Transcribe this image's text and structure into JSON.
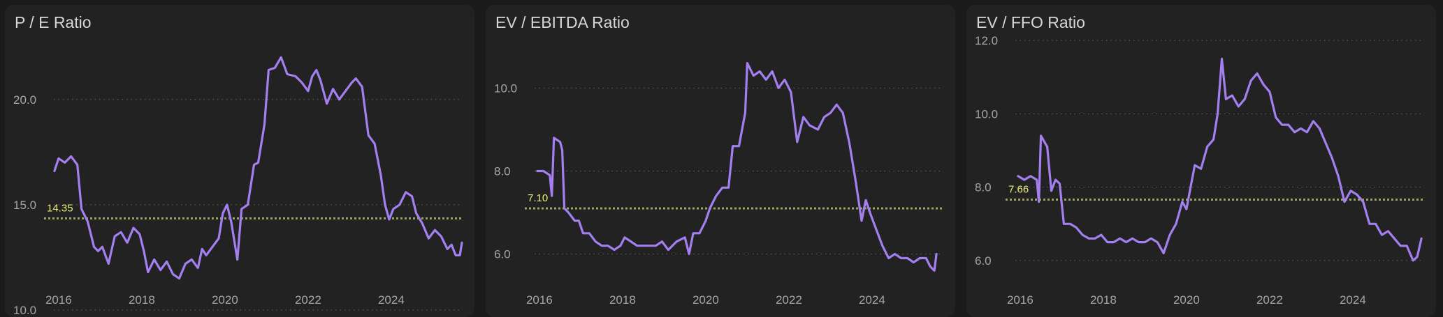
{
  "colors": {
    "line": "#a47ff0",
    "average": "#9ea363",
    "average_label": "#e9ef7a",
    "grid": "#6a6a6a",
    "panel": "#222222",
    "page": "#1a1a1a"
  },
  "chart_data": [
    {
      "type": "line",
      "title": "P / E Ratio",
      "x_ticks": [
        "2016",
        "2018",
        "2020",
        "2022",
        "2024"
      ],
      "y_ticks": [
        "10.0",
        "15.0",
        "20.0"
      ],
      "ylim": [
        10,
        23.5
      ],
      "xlim": [
        2015.75,
        2025.8
      ],
      "grid": "horizontal dotted",
      "average": {
        "value": 14.35,
        "label": "14.35"
      },
      "series": [
        {
          "points": [
            [
              2015.9,
              16.6
            ],
            [
              2016.0,
              17.2
            ],
            [
              2016.15,
              17.0
            ],
            [
              2016.3,
              17.3
            ],
            [
              2016.45,
              16.9
            ],
            [
              2016.55,
              14.8
            ],
            [
              2016.7,
              14.2
            ],
            [
              2016.85,
              13.0
            ],
            [
              2016.95,
              12.8
            ],
            [
              2017.05,
              13.0
            ],
            [
              2017.2,
              12.2
            ],
            [
              2017.35,
              13.5
            ],
            [
              2017.5,
              13.7
            ],
            [
              2017.65,
              13.2
            ],
            [
              2017.8,
              13.9
            ],
            [
              2017.95,
              13.6
            ],
            [
              2018.05,
              12.8
            ],
            [
              2018.15,
              11.8
            ],
            [
              2018.3,
              12.4
            ],
            [
              2018.45,
              11.9
            ],
            [
              2018.6,
              12.3
            ],
            [
              2018.75,
              11.7
            ],
            [
              2018.9,
              11.5
            ],
            [
              2019.05,
              12.2
            ],
            [
              2019.2,
              12.4
            ],
            [
              2019.35,
              12.0
            ],
            [
              2019.45,
              12.9
            ],
            [
              2019.55,
              12.6
            ],
            [
              2019.7,
              13.0
            ],
            [
              2019.85,
              13.4
            ],
            [
              2019.95,
              14.6
            ],
            [
              2020.05,
              15.0
            ],
            [
              2020.15,
              14.2
            ],
            [
              2020.3,
              12.4
            ],
            [
              2020.4,
              14.8
            ],
            [
              2020.55,
              15.0
            ],
            [
              2020.7,
              16.9
            ],
            [
              2020.8,
              17.0
            ],
            [
              2020.95,
              18.8
            ],
            [
              2021.05,
              21.4
            ],
            [
              2021.2,
              21.5
            ],
            [
              2021.35,
              22.0
            ],
            [
              2021.5,
              21.2
            ],
            [
              2021.7,
              21.1
            ],
            [
              2021.85,
              20.8
            ],
            [
              2022.0,
              20.4
            ],
            [
              2022.1,
              21.1
            ],
            [
              2022.2,
              21.4
            ],
            [
              2022.3,
              20.9
            ],
            [
              2022.45,
              19.8
            ],
            [
              2022.6,
              20.5
            ],
            [
              2022.75,
              20.0
            ],
            [
              2022.9,
              20.4
            ],
            [
              2023.05,
              20.8
            ],
            [
              2023.15,
              21.0
            ],
            [
              2023.3,
              20.6
            ],
            [
              2023.45,
              18.3
            ],
            [
              2023.6,
              17.9
            ],
            [
              2023.75,
              16.4
            ],
            [
              2023.85,
              15.0
            ],
            [
              2023.95,
              14.3
            ],
            [
              2024.05,
              14.8
            ],
            [
              2024.2,
              15.0
            ],
            [
              2024.35,
              15.6
            ],
            [
              2024.5,
              15.4
            ],
            [
              2024.6,
              14.6
            ],
            [
              2024.75,
              14.1
            ],
            [
              2024.9,
              13.4
            ],
            [
              2025.05,
              13.8
            ],
            [
              2025.2,
              13.5
            ],
            [
              2025.35,
              12.9
            ],
            [
              2025.45,
              13.1
            ],
            [
              2025.55,
              12.6
            ],
            [
              2025.65,
              12.6
            ],
            [
              2025.7,
              13.2
            ]
          ]
        }
      ]
    },
    {
      "type": "line",
      "title": "EV / EBITDA Ratio",
      "x_ticks": [
        "2016",
        "2018",
        "2020",
        "2022",
        "2024"
      ],
      "y_ticks": [
        "6.0",
        "8.0",
        "10.0"
      ],
      "ylim": [
        4.65,
        11.5
      ],
      "xlim": [
        2015.75,
        2025.8
      ],
      "grid": "horizontal dotted",
      "average": {
        "value": 7.1,
        "label": "7.10"
      },
      "series": [
        {
          "points": [
            [
              2015.95,
              8.0
            ],
            [
              2016.1,
              8.0
            ],
            [
              2016.25,
              7.9
            ],
            [
              2016.3,
              7.4
            ],
            [
              2016.35,
              8.8
            ],
            [
              2016.5,
              8.7
            ],
            [
              2016.55,
              8.5
            ],
            [
              2016.6,
              7.1
            ],
            [
              2016.7,
              7.0
            ],
            [
              2016.85,
              6.8
            ],
            [
              2016.95,
              6.8
            ],
            [
              2017.05,
              6.5
            ],
            [
              2017.2,
              6.5
            ],
            [
              2017.35,
              6.3
            ],
            [
              2017.5,
              6.2
            ],
            [
              2017.65,
              6.2
            ],
            [
              2017.8,
              6.1
            ],
            [
              2017.95,
              6.2
            ],
            [
              2018.05,
              6.4
            ],
            [
              2018.2,
              6.3
            ],
            [
              2018.35,
              6.2
            ],
            [
              2018.5,
              6.2
            ],
            [
              2018.65,
              6.2
            ],
            [
              2018.8,
              6.2
            ],
            [
              2018.95,
              6.3
            ],
            [
              2019.1,
              6.1
            ],
            [
              2019.3,
              6.3
            ],
            [
              2019.5,
              6.4
            ],
            [
              2019.6,
              6.0
            ],
            [
              2019.7,
              6.5
            ],
            [
              2019.85,
              6.5
            ],
            [
              2020.0,
              6.8
            ],
            [
              2020.1,
              7.1
            ],
            [
              2020.25,
              7.4
            ],
            [
              2020.4,
              7.6
            ],
            [
              2020.55,
              7.6
            ],
            [
              2020.65,
              8.6
            ],
            [
              2020.8,
              8.6
            ],
            [
              2020.95,
              9.4
            ],
            [
              2021.0,
              10.6
            ],
            [
              2021.15,
              10.3
            ],
            [
              2021.3,
              10.4
            ],
            [
              2021.45,
              10.2
            ],
            [
              2021.6,
              10.4
            ],
            [
              2021.75,
              10.0
            ],
            [
              2021.9,
              10.2
            ],
            [
              2022.05,
              9.9
            ],
            [
              2022.2,
              8.7
            ],
            [
              2022.35,
              9.3
            ],
            [
              2022.5,
              9.1
            ],
            [
              2022.7,
              9.0
            ],
            [
              2022.85,
              9.3
            ],
            [
              2023.0,
              9.4
            ],
            [
              2023.15,
              9.6
            ],
            [
              2023.3,
              9.4
            ],
            [
              2023.45,
              8.7
            ],
            [
              2023.6,
              7.8
            ],
            [
              2023.75,
              6.8
            ],
            [
              2023.85,
              7.3
            ],
            [
              2023.95,
              7.0
            ],
            [
              2024.1,
              6.6
            ],
            [
              2024.25,
              6.2
            ],
            [
              2024.4,
              5.9
            ],
            [
              2024.55,
              6.0
            ],
            [
              2024.7,
              5.9
            ],
            [
              2024.85,
              5.9
            ],
            [
              2025.0,
              5.8
            ],
            [
              2025.15,
              5.9
            ],
            [
              2025.3,
              5.9
            ],
            [
              2025.4,
              5.7
            ],
            [
              2025.5,
              5.6
            ],
            [
              2025.55,
              6.0
            ]
          ]
        }
      ]
    },
    {
      "type": "line",
      "title": "EV / FFO Ratio",
      "x_ticks": [
        "2016",
        "2018",
        "2020",
        "2022",
        "2024"
      ],
      "y_ticks": [
        "6.0",
        "8.0",
        "10.0",
        "12.0"
      ],
      "ylim": [
        4.65,
        12.4
      ],
      "xlim": [
        2015.75,
        2025.8
      ],
      "grid": "horizontal dotted",
      "average": {
        "value": 7.66,
        "label": "7.66"
      },
      "series": [
        {
          "points": [
            [
              2015.95,
              8.3
            ],
            [
              2016.1,
              8.2
            ],
            [
              2016.25,
              8.3
            ],
            [
              2016.4,
              8.2
            ],
            [
              2016.45,
              7.6
            ],
            [
              2016.5,
              9.4
            ],
            [
              2016.65,
              9.1
            ],
            [
              2016.75,
              7.9
            ],
            [
              2016.85,
              8.2
            ],
            [
              2016.95,
              8.1
            ],
            [
              2017.05,
              7.0
            ],
            [
              2017.2,
              7.0
            ],
            [
              2017.35,
              6.9
            ],
            [
              2017.5,
              6.7
            ],
            [
              2017.65,
              6.6
            ],
            [
              2017.8,
              6.6
            ],
            [
              2017.95,
              6.7
            ],
            [
              2018.1,
              6.5
            ],
            [
              2018.25,
              6.5
            ],
            [
              2018.4,
              6.6
            ],
            [
              2018.55,
              6.5
            ],
            [
              2018.7,
              6.6
            ],
            [
              2018.85,
              6.5
            ],
            [
              2019.0,
              6.5
            ],
            [
              2019.15,
              6.6
            ],
            [
              2019.3,
              6.5
            ],
            [
              2019.45,
              6.2
            ],
            [
              2019.6,
              6.7
            ],
            [
              2019.75,
              7.0
            ],
            [
              2019.9,
              7.6
            ],
            [
              2020.0,
              7.4
            ],
            [
              2020.1,
              8.0
            ],
            [
              2020.2,
              8.6
            ],
            [
              2020.35,
              8.5
            ],
            [
              2020.5,
              9.1
            ],
            [
              2020.65,
              9.3
            ],
            [
              2020.75,
              10.0
            ],
            [
              2020.85,
              11.5
            ],
            [
              2020.95,
              10.4
            ],
            [
              2021.1,
              10.5
            ],
            [
              2021.25,
              10.2
            ],
            [
              2021.4,
              10.4
            ],
            [
              2021.55,
              10.9
            ],
            [
              2021.7,
              11.1
            ],
            [
              2021.85,
              10.8
            ],
            [
              2022.0,
              10.6
            ],
            [
              2022.15,
              9.9
            ],
            [
              2022.3,
              9.7
            ],
            [
              2022.45,
              9.7
            ],
            [
              2022.6,
              9.5
            ],
            [
              2022.75,
              9.6
            ],
            [
              2022.9,
              9.5
            ],
            [
              2023.05,
              9.8
            ],
            [
              2023.2,
              9.6
            ],
            [
              2023.35,
              9.2
            ],
            [
              2023.5,
              8.8
            ],
            [
              2023.65,
              8.3
            ],
            [
              2023.8,
              7.6
            ],
            [
              2023.95,
              7.9
            ],
            [
              2024.1,
              7.8
            ],
            [
              2024.25,
              7.6
            ],
            [
              2024.4,
              7.0
            ],
            [
              2024.55,
              7.0
            ],
            [
              2024.7,
              6.7
            ],
            [
              2024.85,
              6.8
            ],
            [
              2025.0,
              6.6
            ],
            [
              2025.15,
              6.4
            ],
            [
              2025.3,
              6.4
            ],
            [
              2025.45,
              6.0
            ],
            [
              2025.55,
              6.1
            ],
            [
              2025.65,
              6.6
            ]
          ]
        }
      ]
    }
  ]
}
